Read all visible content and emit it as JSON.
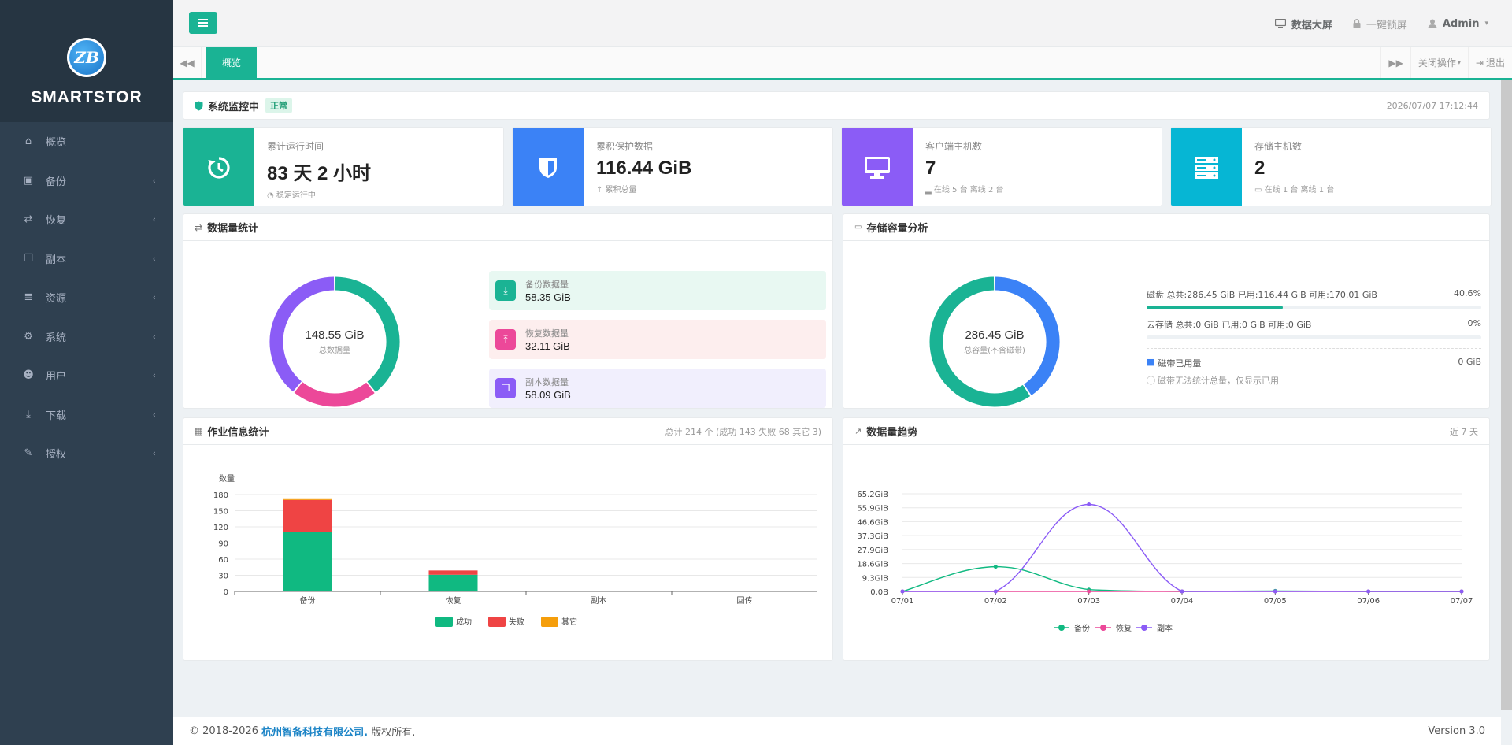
{
  "brand": {
    "name": "SMARTSTOR",
    "logo_text": "ZB"
  },
  "sidebar": {
    "items": [
      {
        "label": "概览",
        "icon": "home-icon",
        "has_children": false
      },
      {
        "label": "备份",
        "icon": "cube-icon",
        "has_children": true
      },
      {
        "label": "恢复",
        "icon": "retweet-icon",
        "has_children": true
      },
      {
        "label": "副本",
        "icon": "copy-icon",
        "has_children": true
      },
      {
        "label": "资源",
        "icon": "server-icon",
        "has_children": true
      },
      {
        "label": "系统",
        "icon": "cogs-icon",
        "has_children": true
      },
      {
        "label": "用户",
        "icon": "users-icon",
        "has_children": true
      },
      {
        "label": "下载",
        "icon": "download-icon",
        "has_children": true
      },
      {
        "label": "授权",
        "icon": "edit-icon",
        "has_children": true
      }
    ],
    "chevron": "‹"
  },
  "topbar": {
    "big_screen": "数据大屏",
    "lock": "一键锁屏",
    "user": "Admin"
  },
  "tabs": {
    "active": "概览",
    "close_ops": "关闭操作",
    "logout": "退出"
  },
  "status": {
    "title": "系统监控中",
    "badge": "正常",
    "time": "2026/07/07 17:12:44"
  },
  "stats": [
    {
      "label": "累计运行时间",
      "value": "83 天 2 小时",
      "sub": "稳定运行中",
      "color": "#1ab394",
      "icon": "history-icon"
    },
    {
      "label": "累积保护数据",
      "value": "116.44 GiB",
      "sub": "累积总量",
      "color": "#3b82f6",
      "icon": "shield-icon"
    },
    {
      "label": "客户端主机数",
      "value": "7",
      "sub": "在线 5 台 离线 2 台",
      "color": "#8b5cf6",
      "icon": "monitor-icon"
    },
    {
      "label": "存储主机数",
      "value": "2",
      "sub": "在线 1 台 离线 1 台",
      "color": "#06b6d4",
      "icon": "storage-server-icon"
    }
  ],
  "data_stats": {
    "title": "数据量统计",
    "total_value": "148.55 GiB",
    "total_label": "总数据量",
    "items": [
      {
        "label": "备份数据量",
        "value": "58.35 GiB",
        "bg": "#e8f8f2",
        "icon_bg": "#1ab394",
        "icon": "download-icon"
      },
      {
        "label": "恢复数据量",
        "value": "32.11 GiB",
        "bg": "#fdeeee",
        "icon_bg": "#ec4899",
        "icon": "upload-icon"
      },
      {
        "label": "副本数据量",
        "value": "58.09 GiB",
        "bg": "#f1effd",
        "icon_bg": "#8b5cf6",
        "icon": "copy-icon"
      }
    ],
    "donut_colors": [
      "#1ab394",
      "#ec4899",
      "#8b5cf6"
    ]
  },
  "storage": {
    "title": "存储容量分析",
    "total_value": "286.45 GiB",
    "total_label": "总容量(不含磁带)",
    "used_fraction": 0.406,
    "rows": [
      {
        "label": "磁盘 总共:286.45 GiB 已用:116.44 GiB 可用:170.01 GiB",
        "pct": "40.6%",
        "fill": 0.406
      },
      {
        "label": "云存储 总共:0 GiB 已用:0 GiB 可用:0 GiB",
        "pct": "0%",
        "fill": 0
      }
    ],
    "tape_label": "磁带已用量",
    "tape_value": "0 GiB",
    "tape_note": "磁带无法统计总量，仅显示已用"
  },
  "jobs": {
    "title": "作业信息统计",
    "summary": "总计 214 个 (成功 143 失败 68 其它 3)"
  },
  "trend": {
    "title": "数据量趋势",
    "range": "近 7 天"
  },
  "chart_data": [
    {
      "type": "bar",
      "title": "",
      "ylabel": "数量",
      "categories": [
        "备份",
        "恢复",
        "副本",
        "回传"
      ],
      "ylim": [
        0,
        180
      ],
      "yticks": [
        0,
        30,
        60,
        90,
        120,
        150,
        180
      ],
      "stacked": true,
      "series": [
        {
          "name": "成功",
          "color": "#10b981",
          "values": [
            110,
            31,
            1,
            1
          ]
        },
        {
          "name": "失败",
          "color": "#ef4444",
          "values": [
            60,
            8,
            0,
            0
          ]
        },
        {
          "name": "其它",
          "color": "#f59e0b",
          "values": [
            3,
            0,
            0,
            0
          ]
        }
      ],
      "legend": "bottom"
    },
    {
      "type": "line",
      "title": "",
      "categories": [
        "07/01",
        "07/02",
        "07/03",
        "07/04",
        "07/05",
        "07/06",
        "07/07"
      ],
      "yticks": [
        "0.0B",
        "9.3GiB",
        "18.6GiB",
        "27.9GiB",
        "37.3GiB",
        "46.6GiB",
        "55.9GiB",
        "65.2GiB"
      ],
      "ylim": [
        0,
        65.2
      ],
      "series": [
        {
          "name": "备份",
          "color": "#10b981",
          "values": [
            0,
            16.5,
            1.2,
            0,
            0.3,
            0,
            0
          ]
        },
        {
          "name": "恢复",
          "color": "#ec4899",
          "values": [
            0,
            0,
            0,
            0,
            0,
            0,
            0
          ]
        },
        {
          "name": "副本",
          "color": "#8b5cf6",
          "values": [
            0,
            0,
            58.1,
            0,
            0,
            0,
            0
          ]
        }
      ],
      "legend": "bottom"
    }
  ],
  "footer": {
    "copyright": "© 2018-2026",
    "company": "杭州智备科技有限公司.",
    "rights": "版权所有.",
    "version": "Version 3.0"
  }
}
